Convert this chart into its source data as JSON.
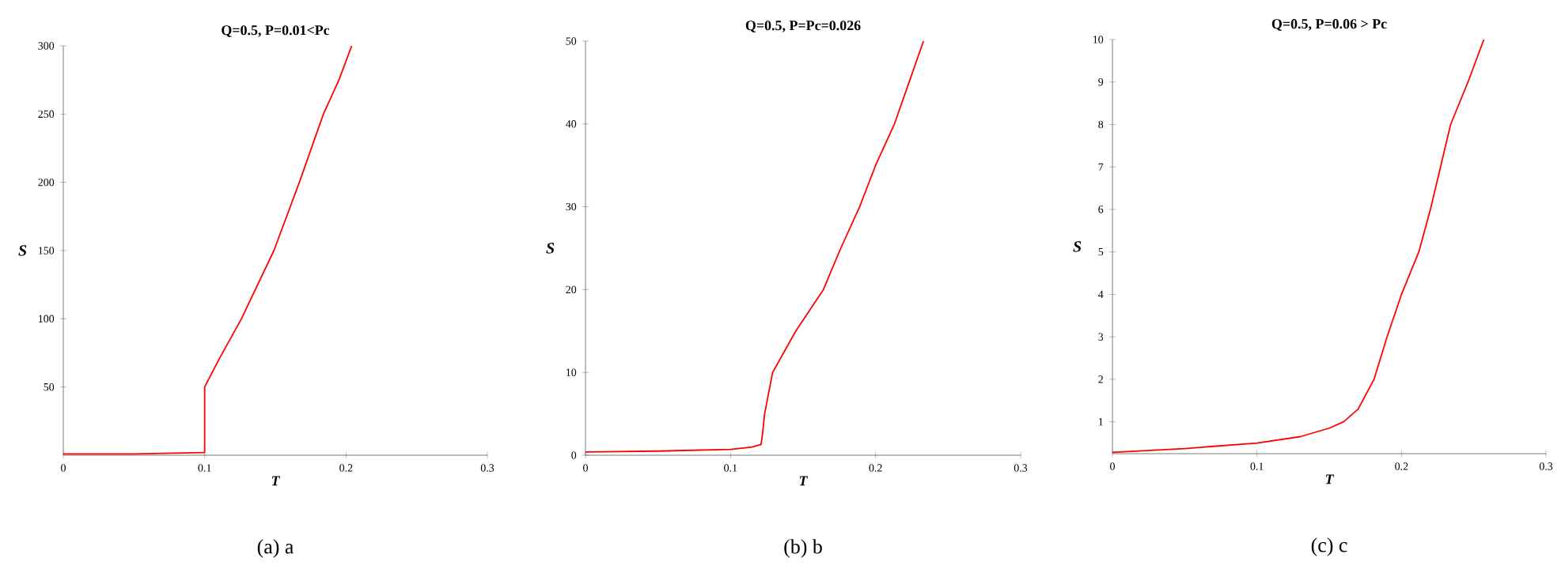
{
  "chart_data": [
    {
      "type": "line",
      "title": "Q=0.5,  P=0.01<Pc",
      "xlabel": "T",
      "ylabel": "S",
      "xlim": [
        0,
        0.3
      ],
      "ylim": [
        0,
        300
      ],
      "xticks": [
        0,
        0.1,
        0.2,
        0.3
      ],
      "yticks": [
        50,
        100,
        150,
        200,
        250,
        300
      ],
      "annotations": [
        "(a) a"
      ],
      "series": [
        {
          "color": "#ff0000",
          "x": [
            0,
            0.05,
            0.1,
            0.1,
            0.11,
            0.126,
            0.149,
            0.167,
            0.184,
            0.195,
            0.204
          ],
          "values": [
            1,
            1,
            2,
            50,
            70,
            100,
            150,
            200,
            250,
            275,
            300
          ]
        }
      ]
    },
    {
      "type": "line",
      "title": "Q=0.5, P=Pc=0.026",
      "xlabel": "T",
      "ylabel": "S",
      "xlim": [
        0,
        0.3
      ],
      "ylim": [
        0,
        50
      ],
      "xticks": [
        0,
        0.1,
        0.2,
        0.3
      ],
      "yticks": [
        0,
        10,
        20,
        30,
        40,
        50
      ],
      "annotations": [
        "(b) b"
      ],
      "series": [
        {
          "color": "#ff0000",
          "x": [
            0,
            0.05,
            0.1,
            0.115,
            0.121,
            0.122,
            0.1235,
            0.129,
            0.145,
            0.164,
            0.176,
            0.189,
            0.2,
            0.213,
            0.223,
            0.233
          ],
          "values": [
            0.4,
            0.5,
            0.7,
            1.0,
            1.3,
            2.5,
            5,
            10,
            15,
            20,
            25,
            30,
            35,
            40,
            45,
            50
          ]
        }
      ]
    },
    {
      "type": "line",
      "title": "Q=0.5, P=0.06 > Pc",
      "xlabel": "T",
      "ylabel": "S",
      "xlim": [
        0,
        0.3
      ],
      "ylim": [
        0.25,
        10
      ],
      "xticks": [
        0,
        0.1,
        0.2,
        0.3
      ],
      "yticks": [
        1,
        2,
        3,
        4,
        5,
        6,
        7,
        8,
        9,
        10
      ],
      "annotations": [
        "(c) c"
      ],
      "series": [
        {
          "color": "#ff0000",
          "x": [
            0,
            0.05,
            0.1,
            0.13,
            0.15,
            0.16,
            0.17,
            0.181,
            0.19,
            0.2,
            0.212,
            0.22,
            0.227,
            0.234,
            0.246,
            0.257
          ],
          "values": [
            0.28,
            0.37,
            0.5,
            0.65,
            0.85,
            1.0,
            1.3,
            2.0,
            3.0,
            4.0,
            5.0,
            6.0,
            7.0,
            8.0,
            9.0,
            10.0
          ]
        }
      ]
    }
  ]
}
